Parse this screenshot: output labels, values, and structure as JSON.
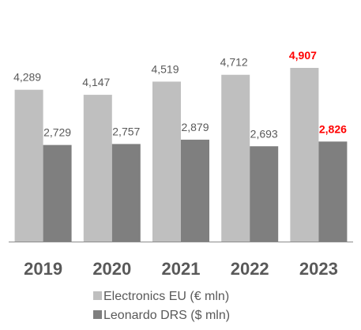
{
  "chart_data": {
    "type": "bar",
    "categories": [
      "2019",
      "2020",
      "2021",
      "2022",
      "2023"
    ],
    "series": [
      {
        "name": "Electronics EU (€ mln)",
        "values": [
          4289,
          4147,
          4519,
          4712,
          4907
        ],
        "color": "#bfbfbf"
      },
      {
        "name": "Leonardo DRS ($ mln)",
        "values": [
          2729,
          2757,
          2879,
          2693,
          2826
        ],
        "color": "#7f7f7f"
      }
    ],
    "data_labels": [
      [
        "4,289",
        "4,147",
        "4,519",
        "4,712",
        "4,907"
      ],
      [
        "2,729",
        "2,757",
        "2,879",
        "2,693",
        "2,826"
      ]
    ],
    "highlight_category": "2023",
    "highlight_color": "#ff0000",
    "label_color": "#595959",
    "ylim": [
      0,
      6000
    ],
    "grid": false,
    "legend_position": "bottom",
    "title": "",
    "xlabel": "",
    "ylabel": ""
  }
}
